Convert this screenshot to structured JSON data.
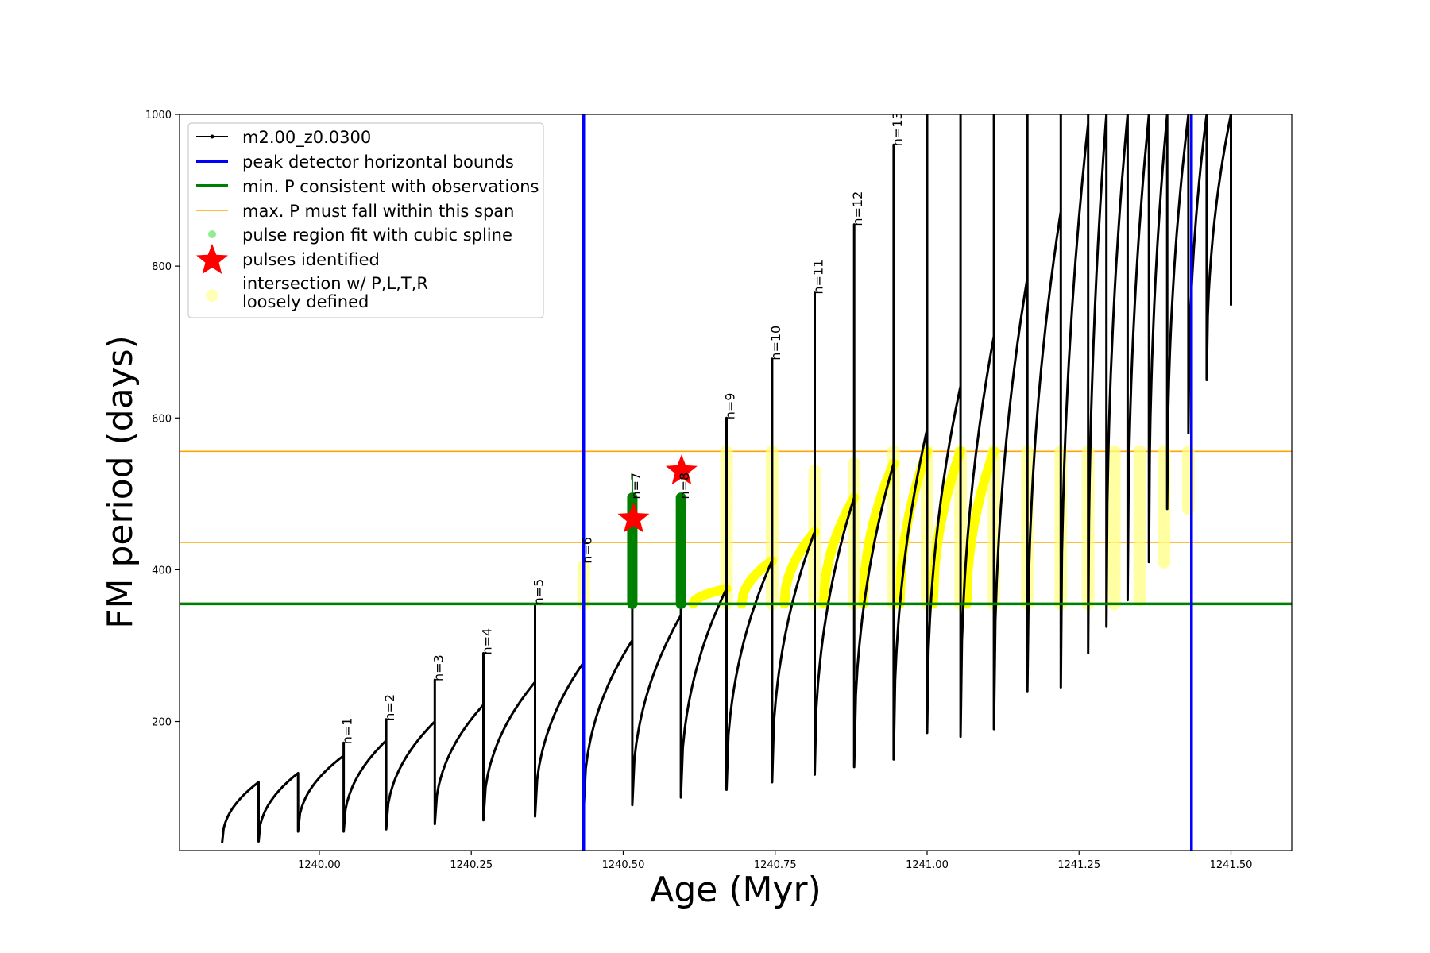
{
  "chart_data": {
    "type": "line",
    "xlabel": "Age (Myr)",
    "ylabel": "FM period (days)",
    "xlim": [
      1239.77,
      1241.6
    ],
    "ylim": [
      30,
      1000
    ],
    "x_ticks": [
      1240.0,
      1240.25,
      1240.5,
      1240.75,
      1241.0,
      1241.25,
      1241.5
    ],
    "x_tick_labels": [
      "1240.00",
      "1240.25",
      "1240.50",
      "1240.75",
      "1241.00",
      "1241.25",
      "1241.50"
    ],
    "y_ticks": [
      200,
      400,
      600,
      800,
      1000
    ],
    "y_tick_labels": [
      "200",
      "400",
      "600",
      "800",
      "1000"
    ],
    "grid": false,
    "legend_position": "top-left",
    "legend": [
      {
        "label": "m2.00_z0.0300",
        "marker": "line-dot",
        "color": "#000000"
      },
      {
        "label": "peak detector horizontal bounds",
        "marker": "line",
        "color": "#0000ff"
      },
      {
        "label": "min. P consistent with observations",
        "marker": "line",
        "color": "#008000"
      },
      {
        "label": "max. P must fall within this span",
        "marker": "thin-line",
        "color": "#ffa500"
      },
      {
        "label": "pulse region fit with cubic spline",
        "marker": "dot",
        "color": "#90ee90"
      },
      {
        "label": "pulses identified",
        "marker": "star",
        "color": "#ff0000"
      },
      {
        "label": "intersection w/ P,L,T,R",
        "label2": "loosely defined",
        "marker": "circle",
        "color": "#ffff99"
      }
    ],
    "series_name": "m2.00_z0.0300",
    "pulses": [
      {
        "x_start": 1239.84,
        "x_end": 1239.9,
        "y_low": 40,
        "y_high": 120,
        "x_prev_end": 1239.84,
        "spike": 100
      },
      {
        "x_start": 1239.9,
        "x_end": 1239.965,
        "y_low": 42,
        "y_high": 132
      },
      {
        "x_start": 1239.965,
        "x_end": 1240.04,
        "y_low": 55,
        "y_high": 155,
        "label": "n=1",
        "spike": 172
      },
      {
        "x_start": 1240.04,
        "x_end": 1240.11,
        "y_low": 55,
        "y_high": 175,
        "label": "n=2",
        "spike": 203
      },
      {
        "x_start": 1240.11,
        "x_end": 1240.19,
        "y_low": 58,
        "y_high": 200,
        "label": "n=3",
        "spike": 255
      },
      {
        "x_start": 1240.19,
        "x_end": 1240.27,
        "y_low": 65,
        "y_high": 222,
        "label": "n=4",
        "spike": 290
      },
      {
        "x_start": 1240.27,
        "x_end": 1240.355,
        "y_low": 70,
        "y_high": 252,
        "label": "n=5",
        "spike": 355
      },
      {
        "x_start": 1240.355,
        "x_end": 1240.435,
        "y_low": 75,
        "y_high": 278,
        "label": "n=6",
        "spike": 410
      },
      {
        "x_start": 1240.435,
        "x_end": 1240.515,
        "y_low": 85,
        "y_high": 307,
        "label": "n=7",
        "spike": 495
      },
      {
        "x_start": 1240.515,
        "x_end": 1240.595,
        "y_low": 90,
        "y_high": 340,
        "label": "n=8",
        "spike": 495
      },
      {
        "x_start": 1240.595,
        "x_end": 1240.67,
        "y_low": 100,
        "y_high": 375,
        "label": "n=9",
        "spike": 600
      },
      {
        "x_start": 1240.67,
        "x_end": 1240.745,
        "y_low": 110,
        "y_high": 412,
        "label": "n=10",
        "spike": 678
      },
      {
        "x_start": 1240.745,
        "x_end": 1240.815,
        "y_low": 120,
        "y_high": 450,
        "label": "n=11",
        "spike": 765
      },
      {
        "x_start": 1240.815,
        "x_end": 1240.88,
        "y_low": 130,
        "y_high": 495,
        "label": "n=12",
        "spike": 855
      },
      {
        "x_start": 1240.88,
        "x_end": 1240.945,
        "y_low": 140,
        "y_high": 540,
        "label": "n=13",
        "spike": 960
      },
      {
        "x_start": 1240.945,
        "x_end": 1241.0,
        "y_low": 150,
        "y_high": 585,
        "spike": 1000
      },
      {
        "x_start": 1241.0,
        "x_end": 1241.055,
        "y_low": 185,
        "y_high": 642,
        "spike": 1000
      },
      {
        "x_start": 1241.055,
        "x_end": 1241.11,
        "y_low": 180,
        "y_high": 708,
        "spike": 1000
      },
      {
        "x_start": 1241.11,
        "x_end": 1241.165,
        "y_low": 190,
        "y_high": 785,
        "spike": 1000
      },
      {
        "x_start": 1241.165,
        "x_end": 1241.22,
        "y_low": 240,
        "y_high": 872,
        "spike": 1000
      },
      {
        "x_start": 1241.22,
        "x_end": 1241.265,
        "y_low": 245,
        "y_high": 988,
        "spike": 1000
      },
      {
        "x_start": 1241.265,
        "x_end": 1241.295,
        "y_low": 290,
        "y_high": 1000,
        "spike": 1000
      },
      {
        "x_start": 1241.295,
        "x_end": 1241.33,
        "y_low": 325,
        "y_high": 1000,
        "spike": 1000
      },
      {
        "x_start": 1241.33,
        "x_end": 1241.365,
        "y_low": 360,
        "y_high": 1000,
        "spike": 1000
      },
      {
        "x_start": 1241.365,
        "x_end": 1241.395,
        "y_low": 410,
        "y_high": 1000,
        "spike": 1000
      },
      {
        "x_start": 1241.395,
        "x_end": 1241.43,
        "y_low": 480,
        "y_high": 1000,
        "spike": 1000
      },
      {
        "x_start": 1241.43,
        "x_end": 1241.46,
        "y_low": 580,
        "y_high": 1000,
        "spike": 1000
      },
      {
        "x_start": 1241.46,
        "x_end": 1241.5,
        "y_low": 650,
        "y_high": 1000,
        "spike": 1000
      }
    ],
    "tail_end": {
      "x": 1241.5,
      "y": 748
    },
    "peak_detector_bounds_x": [
      1240.435,
      1241.435
    ],
    "min_period_line_y": 355,
    "max_period_span_y": [
      436,
      556
    ],
    "spline_regions": [
      {
        "x": 1240.515,
        "y_low": 355,
        "y_high": 495,
        "spike_top": 525
      },
      {
        "x": 1240.595,
        "y_low": 355,
        "y_high": 495
      }
    ],
    "pulses_identified": [
      {
        "x": 1240.517,
        "y": 467
      },
      {
        "x": 1240.596,
        "y": 530
      }
    ],
    "intersection_regions": [
      {
        "x": 1240.435,
        "y_low": 355,
        "y_high": 405
      },
      {
        "x": 1240.67,
        "y_low": 355,
        "y_high": 556
      },
      {
        "x": 1240.745,
        "y_low": 355,
        "y_high": 556
      },
      {
        "x": 1240.815,
        "y_low": 355,
        "y_high": 530
      },
      {
        "x": 1240.88,
        "y_low": 355,
        "y_high": 540
      },
      {
        "x": 1240.945,
        "y_low": 355,
        "y_high": 556
      },
      {
        "x": 1241.0,
        "y_low": 355,
        "y_high": 556
      },
      {
        "x": 1241.055,
        "y_low": 355,
        "y_high": 556
      },
      {
        "x": 1241.11,
        "y_low": 355,
        "y_high": 556
      },
      {
        "x": 1241.165,
        "y_low": 355,
        "y_high": 556
      },
      {
        "x": 1241.22,
        "y_low": 355,
        "y_high": 556
      },
      {
        "x": 1241.265,
        "y_low": 355,
        "y_high": 556
      },
      {
        "x": 1241.308,
        "y_low": 355,
        "y_high": 556
      },
      {
        "x": 1241.35,
        "y_low": 360,
        "y_high": 556
      },
      {
        "x": 1241.39,
        "y_low": 410,
        "y_high": 556
      },
      {
        "x": 1241.43,
        "y_low": 480,
        "y_high": 556
      }
    ],
    "intersection_arcs": [
      {
        "x_start": 1240.615,
        "x_end": 1240.67,
        "y_top": 375
      },
      {
        "x_start": 1240.695,
        "x_end": 1240.745,
        "y_top": 412
      },
      {
        "x_start": 1240.765,
        "x_end": 1240.815,
        "y_top": 450
      },
      {
        "x_start": 1240.83,
        "x_end": 1240.88,
        "y_top": 495
      },
      {
        "x_start": 1240.895,
        "x_end": 1240.945,
        "y_top": 540
      },
      {
        "x_start": 1240.955,
        "x_end": 1241.0,
        "y_top": 556
      },
      {
        "x_start": 1241.01,
        "x_end": 1241.055,
        "y_top": 556
      },
      {
        "x_start": 1241.065,
        "x_end": 1241.11,
        "y_top": 556
      }
    ]
  }
}
